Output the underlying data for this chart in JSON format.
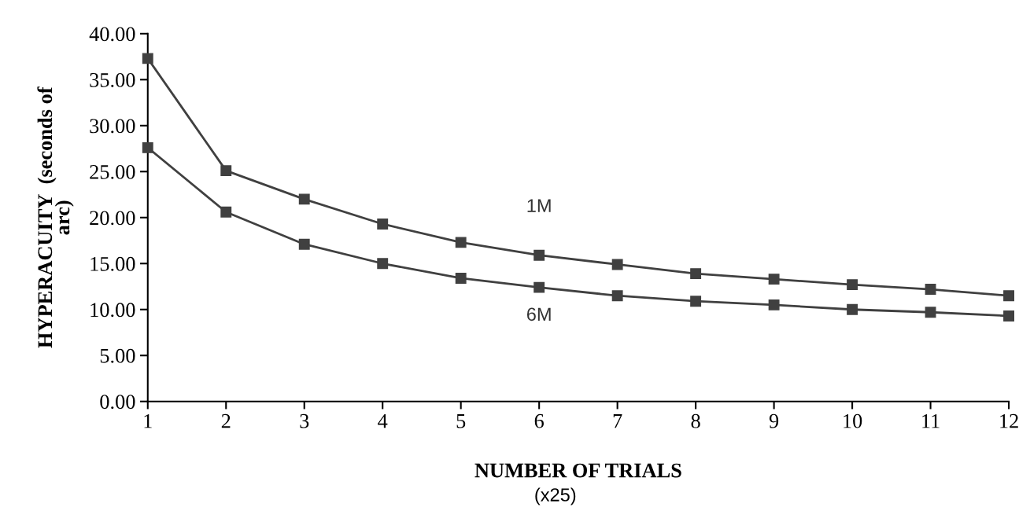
{
  "chart_data": {
    "type": "line",
    "xlabel": "NUMBER OF TRIALS",
    "ylabel": "HYPERACUITY  (seconds of\narc)",
    "annotations": [
      "(x25)"
    ],
    "x": [
      1,
      2,
      3,
      4,
      5,
      6,
      7,
      8,
      9,
      10,
      11,
      12
    ],
    "series": [
      {
        "name": "1M",
        "color": "#404040",
        "values": [
          37.3,
          25.1,
          22.0,
          19.3,
          17.3,
          15.9,
          14.9,
          13.9,
          13.3,
          12.7,
          12.2,
          11.5
        ]
      },
      {
        "name": "6M",
        "color": "#404040",
        "values": [
          27.6,
          20.6,
          17.1,
          15.0,
          13.4,
          12.4,
          11.5,
          10.9,
          10.5,
          10.0,
          9.7,
          9.3
        ]
      }
    ],
    "xlim": [
      1,
      12
    ],
    "xticks": [
      1,
      2,
      3,
      4,
      5,
      6,
      7,
      8,
      9,
      10,
      11,
      12
    ],
    "ylim": [
      0,
      40
    ],
    "yticks": [
      {
        "value": 0,
        "label": "0.00"
      },
      {
        "value": 5,
        "label": "5.00"
      },
      {
        "value": 10,
        "label": "10.00"
      },
      {
        "value": 15,
        "label": "15.00"
      },
      {
        "value": 20,
        "label": "20.00"
      },
      {
        "value": 25,
        "label": "25.00"
      },
      {
        "value": 30,
        "label": "30.00"
      },
      {
        "value": 35,
        "label": "35.00"
      },
      {
        "value": 40,
        "label": "40.00"
      }
    ],
    "grid": false,
    "legend": false,
    "marker": "square",
    "line_style": "solid"
  }
}
